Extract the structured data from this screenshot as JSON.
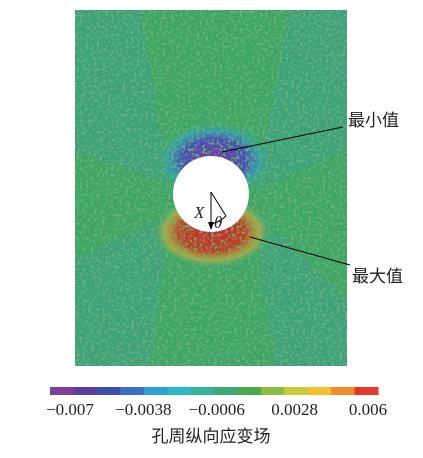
{
  "figure": {
    "annotations": {
      "min": "最小值",
      "max": "最大值",
      "axis": "X",
      "angle": "θ"
    },
    "colorbar": {
      "label": "孔周纵向应变场",
      "colors": [
        "#7b3f9e",
        "#5a3fa0",
        "#3e4fb0",
        "#3a6fc4",
        "#2f9fd8",
        "#2bb8c8",
        "#33b39a",
        "#3da874",
        "#4aa84f",
        "#8cbf3f",
        "#c8cc36",
        "#f2c12e",
        "#f08a2a",
        "#e8382a"
      ],
      "ticks": [
        {
          "value": -0.007,
          "label": "−0.007"
        },
        {
          "value": -0.0038,
          "label": "−0.0038"
        },
        {
          "value": -0.0006,
          "label": "−0.0006"
        },
        {
          "value": 0.0028,
          "label": "0.0028"
        },
        {
          "value": 0.006,
          "label": "0.006"
        }
      ]
    }
  }
}
